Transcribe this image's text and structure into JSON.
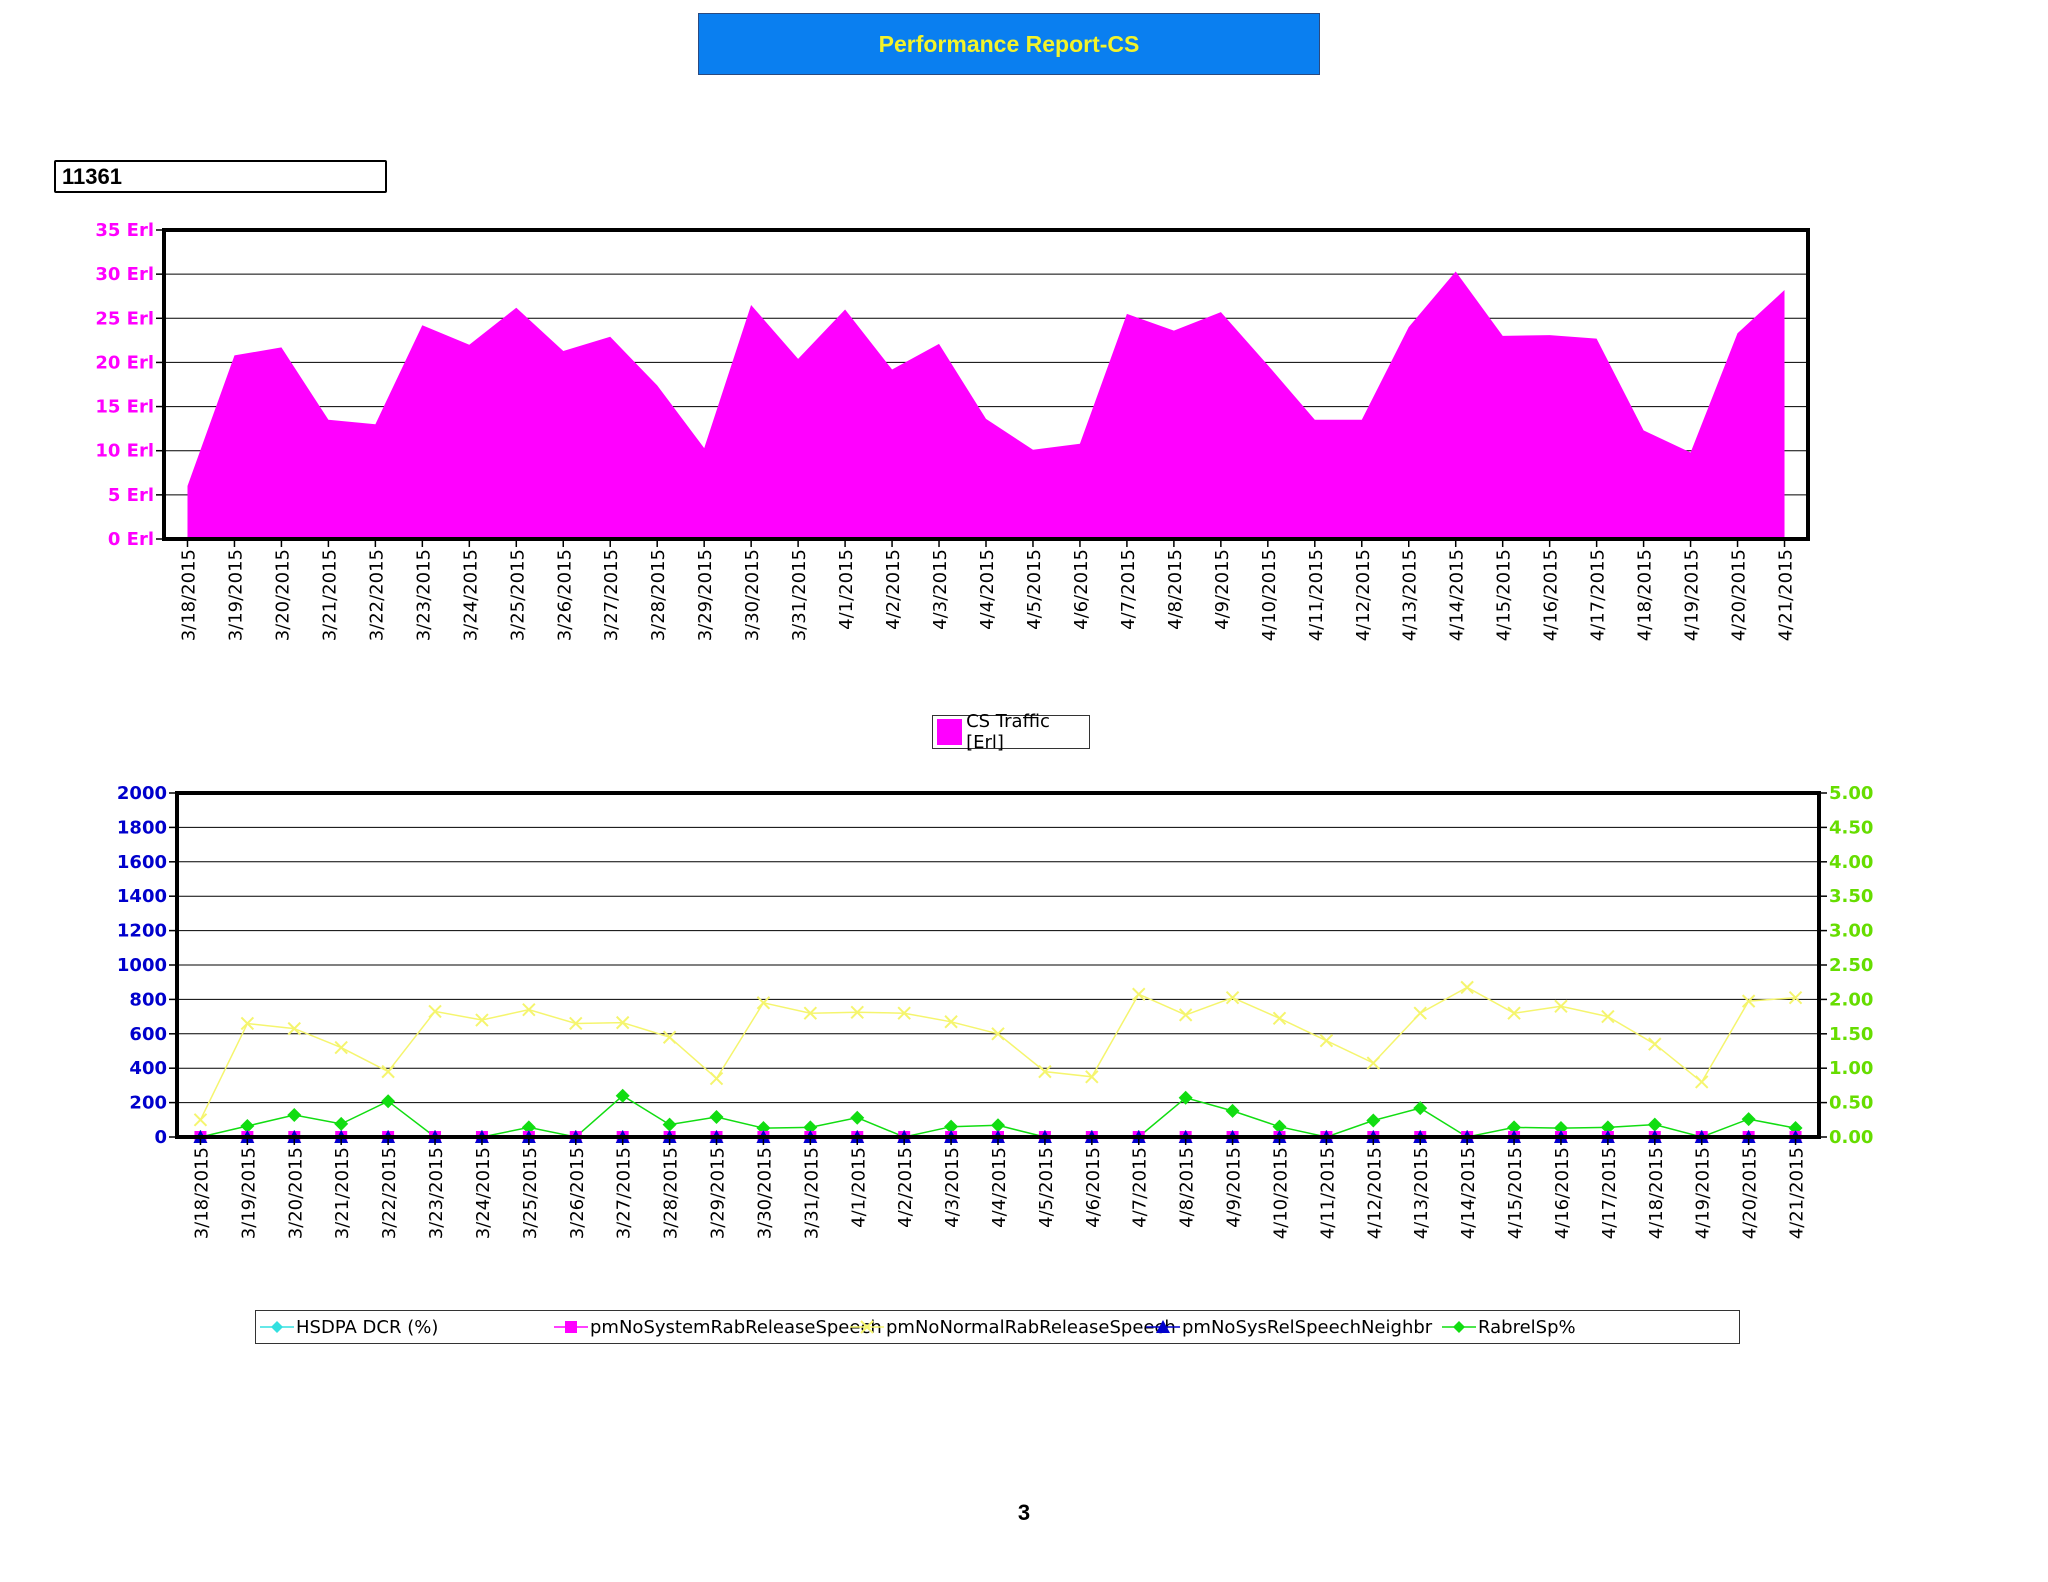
{
  "header": {
    "title": "Performance Report-CS",
    "cell_id": "11361"
  },
  "page_number": "3",
  "colors": {
    "title_bg": "#0a7ff0",
    "title_text": "#f3f32a",
    "traffic": "#ff00ff",
    "left_axis": "#0000cc",
    "right_axis": "#66dd00"
  },
  "chart_data": [
    {
      "type": "area",
      "x": [
        "3/18/2015",
        "3/19/2015",
        "3/20/2015",
        "3/21/2015",
        "3/22/2015",
        "3/23/2015",
        "3/24/2015",
        "3/25/2015",
        "3/26/2015",
        "3/27/2015",
        "3/28/2015",
        "3/29/2015",
        "3/30/2015",
        "3/31/2015",
        "4/1/2015",
        "4/2/2015",
        "4/3/2015",
        "4/4/2015",
        "4/5/2015",
        "4/6/2015",
        "4/7/2015",
        "4/8/2015",
        "4/9/2015",
        "4/10/2015",
        "4/11/2015",
        "4/12/2015",
        "4/13/2015",
        "4/14/2015",
        "4/15/2015",
        "4/16/2015",
        "4/17/2015",
        "4/18/2015",
        "4/19/2015",
        "4/20/2015",
        "4/21/2015"
      ],
      "series": [
        {
          "name": "CS Traffic [Erl]",
          "color": "#ff00ff",
          "values": [
            6,
            20.8,
            21.7,
            13.5,
            13,
            24.2,
            22,
            26.2,
            21.3,
            22.9,
            17.4,
            10.3,
            26.5,
            20.4,
            26,
            19.2,
            22.1,
            13.6,
            10.1,
            10.8,
            25.5,
            23.6,
            25.7,
            19.7,
            13.5,
            13.5,
            24,
            30.3,
            23,
            23.1,
            22.7,
            12.3,
            9.8,
            23.3,
            28.2
          ]
        }
      ],
      "ylim": [
        0,
        35
      ],
      "yticks": [
        "0 Erl",
        "5 Erl",
        "10 Erl",
        "15 Erl",
        "20 Erl",
        "25 Erl",
        "30 Erl",
        "35 Erl"
      ],
      "grid": true,
      "legend": "bottom-center"
    },
    {
      "type": "line",
      "x": [
        "3/18/2015",
        "3/19/2015",
        "3/20/2015",
        "3/21/2015",
        "3/22/2015",
        "3/23/2015",
        "3/24/2015",
        "3/25/2015",
        "3/26/2015",
        "3/27/2015",
        "3/28/2015",
        "3/29/2015",
        "3/30/2015",
        "3/31/2015",
        "4/1/2015",
        "4/2/2015",
        "4/3/2015",
        "4/4/2015",
        "4/5/2015",
        "4/6/2015",
        "4/7/2015",
        "4/8/2015",
        "4/9/2015",
        "4/10/2015",
        "4/11/2015",
        "4/12/2015",
        "4/13/2015",
        "4/14/2015",
        "4/15/2015",
        "4/16/2015",
        "4/17/2015",
        "4/18/2015",
        "4/19/2015",
        "4/20/2015",
        "4/21/2015"
      ],
      "ylim_left": [
        0,
        2000
      ],
      "ylim_right": [
        0,
        5
      ],
      "yticks_left": [
        "0",
        "200",
        "400",
        "600",
        "800",
        "1000",
        "1200",
        "1400",
        "1600",
        "1800",
        "2000"
      ],
      "yticks_right": [
        "0.00",
        "0.50",
        "1.00",
        "1.50",
        "2.00",
        "2.50",
        "3.00",
        "3.50",
        "4.00",
        "4.50",
        "5.00"
      ],
      "grid": true,
      "legend": "bottom",
      "series": [
        {
          "name": "HSDPA DCR (%)",
          "color": "#33e0e0",
          "marker": "diamond",
          "axis": "right",
          "values": [
            0,
            0,
            0,
            0,
            0,
            0,
            0,
            0,
            0,
            0,
            0,
            0,
            0,
            0,
            0,
            0,
            0,
            0,
            0,
            0,
            0,
            0,
            0,
            0,
            0,
            0,
            0,
            0,
            0,
            0,
            0,
            0,
            0,
            0,
            0
          ]
        },
        {
          "name": "pmNoSystemRabReleaseSpeech",
          "color": "#ff00ff",
          "marker": "square",
          "axis": "left",
          "values": [
            0,
            0,
            0,
            0,
            0,
            0,
            0,
            0,
            0,
            0,
            0,
            0,
            0,
            0,
            0,
            0,
            0,
            0,
            0,
            0,
            0,
            0,
            0,
            0,
            0,
            0,
            0,
            0,
            0,
            0,
            0,
            0,
            0,
            0,
            0
          ]
        },
        {
          "name": "pmNoNormalRabReleaseSpeech",
          "color": "#f5f56e",
          "marker": "x",
          "axis": "left",
          "values": [
            100,
            660,
            630,
            520,
            380,
            730,
            680,
            740,
            660,
            665,
            580,
            340,
            780,
            720,
            725,
            720,
            670,
            600,
            380,
            350,
            830,
            710,
            810,
            690,
            560,
            430,
            720,
            870,
            720,
            760,
            700,
            540,
            320,
            790,
            810
          ]
        },
        {
          "name": "pmNoSysRelSpeechNeighbr",
          "color": "#0000cc",
          "marker": "triangle",
          "axis": "left",
          "values": [
            0,
            0,
            0,
            0,
            0,
            0,
            0,
            0,
            0,
            0,
            0,
            0,
            0,
            0,
            0,
            0,
            0,
            0,
            0,
            0,
            0,
            0,
            0,
            0,
            0,
            0,
            0,
            0,
            0,
            0,
            0,
            0,
            0,
            0,
            0
          ]
        },
        {
          "name": "RabrelSp%",
          "color": "#11dd11",
          "marker": "diamond",
          "axis": "right",
          "values": [
            0,
            0.16,
            0.32,
            0.19,
            0.52,
            0,
            0,
            0.14,
            0,
            0.6,
            0.18,
            0.29,
            0.13,
            0.14,
            0.28,
            0,
            0.15,
            0.17,
            0,
            0,
            0,
            0.57,
            0.38,
            0.15,
            0,
            0.24,
            0.42,
            0,
            0.14,
            0.13,
            0.14,
            0.18,
            0,
            0.26,
            0.13
          ]
        }
      ]
    }
  ]
}
